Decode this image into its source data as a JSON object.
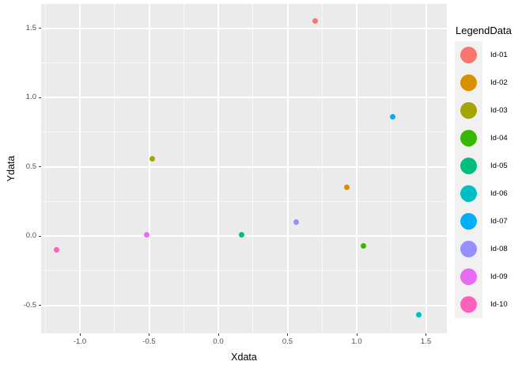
{
  "chart_data": {
    "type": "scatter",
    "title": "",
    "xlabel": "Xdata",
    "ylabel": "Ydata",
    "legend_title": "LegendData",
    "legend_position": "right",
    "grid": "major-and-minor",
    "panel_background": "#EBEBEB",
    "gridline_color": "#FFFFFF",
    "tick_color": "#333333",
    "tick_label_color": "#4D4D4D",
    "x_tick_labels": [
      "-1.0",
      "-0.5",
      "0.0",
      "0.5",
      "1.0",
      "1.5"
    ],
    "x_tick_values": [
      -1.0,
      -0.5,
      0.0,
      0.5,
      1.0,
      1.5
    ],
    "y_tick_labels": [
      "-0.5",
      "0.0",
      "0.5",
      "1.0",
      "1.5"
    ],
    "y_tick_values": [
      -0.5,
      0.0,
      0.5,
      1.0,
      1.5
    ],
    "xlim": [
      -1.28,
      1.65
    ],
    "ylim": [
      -0.7,
      1.67
    ],
    "series": [
      {
        "name": "Id-01",
        "x": 0.7,
        "y": 1.55,
        "color": "#F8766D"
      },
      {
        "name": "Id-02",
        "x": 0.93,
        "y": 0.35,
        "color": "#D89000"
      },
      {
        "name": "Id-03",
        "x": -0.48,
        "y": 0.56,
        "color": "#A3A500"
      },
      {
        "name": "Id-04",
        "x": 1.05,
        "y": -0.07,
        "color": "#39B600"
      },
      {
        "name": "Id-05",
        "x": 0.17,
        "y": 0.01,
        "color": "#00BF7D"
      },
      {
        "name": "Id-06",
        "x": 1.45,
        "y": -0.57,
        "color": "#00BFC4"
      },
      {
        "name": "Id-07",
        "x": 1.26,
        "y": 0.86,
        "color": "#00B0F6"
      },
      {
        "name": "Id-08",
        "x": 0.56,
        "y": 0.1,
        "color": "#9590FF"
      },
      {
        "name": "Id-09",
        "x": -0.52,
        "y": 0.01,
        "color": "#E76BF3"
      },
      {
        "name": "Id-10",
        "x": -1.17,
        "y": -0.1,
        "color": "#FF62BC"
      }
    ]
  }
}
